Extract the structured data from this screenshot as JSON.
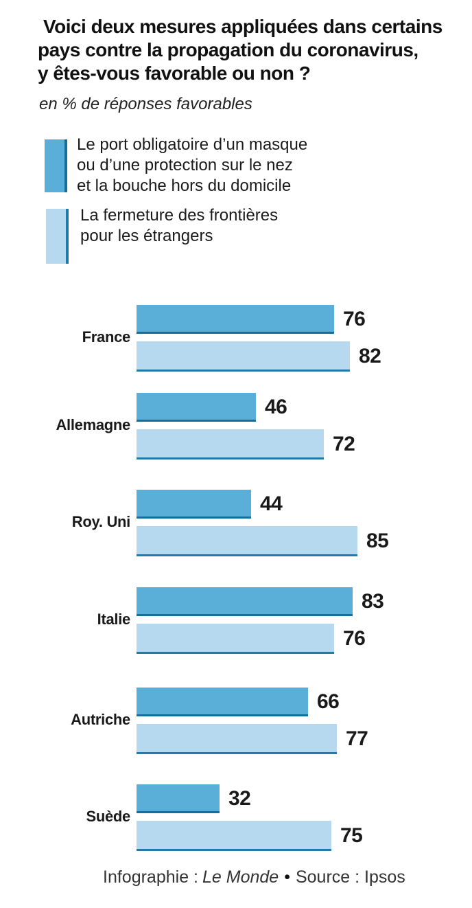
{
  "title": {
    "lines": [
      "Voici deux mesures appliquées dans certains",
      "pays contre la propagation du coronavirus,",
      "y êtes-vous favorable ou non ?"
    ]
  },
  "subtitle": "en % de réponses favorables",
  "legend": {
    "items": [
      {
        "id": "masque",
        "color": "#5AAFD9",
        "border_color": "#156F9E",
        "lines": [
          "Le port obligatoire d’un masque",
          "ou d’une protection sur le nez",
          "et la bouche hors du domicile"
        ]
      },
      {
        "id": "frontieres",
        "color": "#B7D9EF",
        "border_color": "#2579A8",
        "lines": [
          "La fermeture des frontières",
          "pour les étrangers"
        ]
      }
    ]
  },
  "chart_data": {
    "type": "bar",
    "orientation": "horizontal",
    "unit": "% de réponses favorables",
    "categories": [
      "France",
      "Allemagne",
      "Roy. Uni",
      "Italie",
      "Autriche",
      "Suède"
    ],
    "series": [
      {
        "name": "Le port obligatoire d’un masque ou d’une protection sur le nez et la bouche hors du domicile",
        "color": "#5AAFD9",
        "values": [
          76,
          46,
          44,
          83,
          66,
          32
        ]
      },
      {
        "name": "La fermeture des frontières pour les étrangers",
        "color": "#B7D9EF",
        "values": [
          82,
          72,
          85,
          76,
          77,
          75
        ]
      }
    ],
    "xlim": [
      0,
      100
    ],
    "grid": false,
    "value_labels": true,
    "legend_position": "top-left"
  },
  "footer": {
    "prefix": "Infographie :",
    "brand": "Le Monde",
    "separator": "•",
    "suffix": "Source : Ipsos"
  }
}
